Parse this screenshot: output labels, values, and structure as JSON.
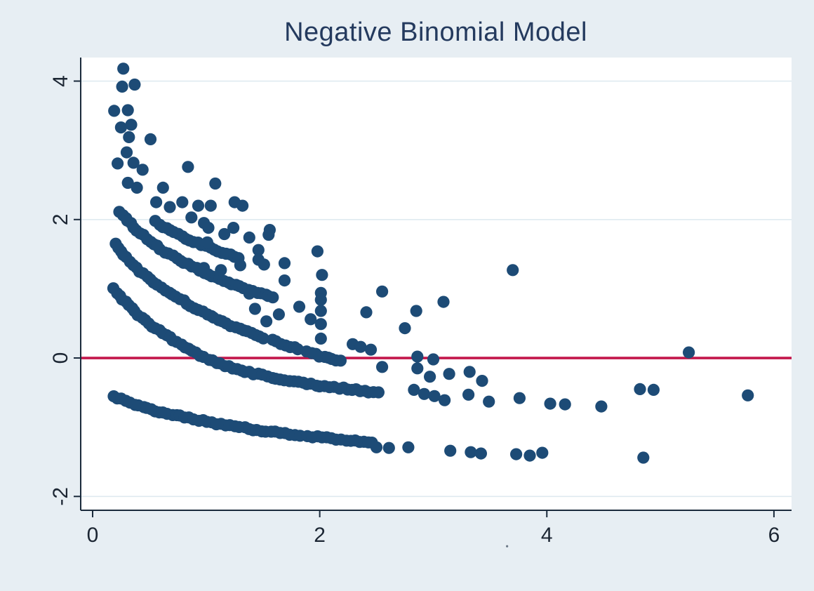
{
  "page": {
    "background": "#e7eef3"
  },
  "chart_data": {
    "type": "scatter",
    "title": "Negative Binomial Model",
    "subtitle": "",
    "xlabel": "",
    "ylabel": "",
    "xlim": [
      -0.105,
      6.155
    ],
    "ylim": [
      -2.2,
      4.34
    ],
    "xticks": [
      0,
      2,
      4,
      6
    ],
    "yticks": [
      -2,
      0,
      2,
      4
    ],
    "grid": "horizontal-only",
    "legend": "none",
    "colors": {
      "title": "#243a5e",
      "marker": "#1d4b76",
      "refline": "#c3174b",
      "axis": "#1b2b3c",
      "tick_label": "#1c2633",
      "gridline": "#dfeaf0",
      "plot_bg": "#ffffff",
      "outer_bg": "#e7eef3"
    },
    "marker": {
      "radius": 8.6
    },
    "refline": {
      "y": 0,
      "width": 3.6
    },
    "bands": [
      {
        "count": 0,
        "gap_after_x": 1.7,
        "anchors": [
          [
            0.19,
            -0.55
          ],
          [
            0.35,
            -0.66
          ],
          [
            0.55,
            -0.76
          ],
          [
            0.8,
            -0.85
          ],
          [
            1.1,
            -0.95
          ],
          [
            1.45,
            -1.04
          ],
          [
            1.8,
            -1.11
          ],
          [
            2.15,
            -1.17
          ],
          [
            2.48,
            -1.22
          ]
        ]
      },
      {
        "count": 1,
        "gap_after_x": 1.7,
        "anchors": [
          [
            0.185,
            1.0
          ],
          [
            0.33,
            0.74
          ],
          [
            0.5,
            0.49
          ],
          [
            0.7,
            0.27
          ],
          [
            0.9,
            0.08
          ],
          [
            1.1,
            -0.07
          ],
          [
            1.35,
            -0.2
          ],
          [
            1.65,
            -0.3
          ],
          [
            1.95,
            -0.385
          ],
          [
            2.25,
            -0.45
          ],
          [
            2.52,
            -0.5
          ]
        ]
      },
      {
        "count": 2,
        "gap_after_x": 1.5,
        "anchors": [
          [
            0.2,
            1.65
          ],
          [
            0.36,
            1.34
          ],
          [
            0.55,
            1.08
          ],
          [
            0.78,
            0.84
          ],
          [
            1.02,
            0.62
          ],
          [
            1.28,
            0.43
          ],
          [
            1.55,
            0.27
          ],
          [
            1.82,
            0.12
          ],
          [
            2.05,
            0.01
          ],
          [
            2.26,
            -0.08
          ]
        ]
      },
      {
        "count": 3,
        "gap_after_x": 99,
        "anchors": [
          [
            0.24,
            2.12
          ],
          [
            0.42,
            1.8
          ],
          [
            0.65,
            1.52
          ],
          [
            0.9,
            1.3
          ],
          [
            1.15,
            1.12
          ],
          [
            1.4,
            0.97
          ],
          [
            1.6,
            0.86
          ]
        ]
      },
      {
        "count": 4,
        "gap_after_x": 99,
        "anchors": [
          [
            0.55,
            1.97
          ],
          [
            0.72,
            1.81
          ],
          [
            0.92,
            1.66
          ],
          [
            1.12,
            1.54
          ],
          [
            1.3,
            1.44
          ]
        ]
      }
    ],
    "points": [
      [
        0.27,
        4.18
      ],
      [
        0.26,
        3.92
      ],
      [
        0.37,
        3.95
      ],
      [
        0.19,
        3.57
      ],
      [
        0.31,
        3.58
      ],
      [
        0.25,
        3.33
      ],
      [
        0.34,
        3.37
      ],
      [
        0.32,
        3.19
      ],
      [
        0.51,
        3.16
      ],
      [
        0.3,
        2.97
      ],
      [
        0.22,
        2.81
      ],
      [
        0.36,
        2.82
      ],
      [
        0.44,
        2.72
      ],
      [
        0.31,
        2.53
      ],
      [
        0.39,
        2.46
      ],
      [
        0.62,
        2.46
      ],
      [
        0.56,
        2.25
      ],
      [
        0.84,
        2.76
      ],
      [
        1.08,
        2.52
      ],
      [
        0.79,
        2.25
      ],
      [
        0.93,
        2.2
      ],
      [
        1.04,
        2.2
      ],
      [
        1.25,
        2.25
      ],
      [
        1.32,
        2.2
      ],
      [
        0.68,
        2.18
      ],
      [
        0.87,
        2.03
      ],
      [
        0.98,
        1.95
      ],
      [
        1.02,
        1.88
      ],
      [
        1.24,
        1.88
      ],
      [
        1.56,
        1.85
      ],
      [
        1.16,
        1.79
      ],
      [
        1.55,
        1.78
      ],
      [
        1.38,
        1.74
      ],
      [
        1.01,
        1.67
      ],
      [
        1.46,
        1.56
      ],
      [
        1.98,
        1.54
      ],
      [
        1.69,
        1.37
      ],
      [
        1.51,
        1.35
      ],
      [
        1.3,
        1.34
      ],
      [
        1.13,
        1.27
      ],
      [
        0.98,
        1.3
      ],
      [
        1.46,
        1.42
      ],
      [
        1.69,
        1.12
      ],
      [
        2.02,
        1.2
      ],
      [
        1.38,
        0.93
      ],
      [
        2.01,
        0.94
      ],
      [
        2.01,
        0.84
      ],
      [
        2.01,
        0.68
      ],
      [
        2.01,
        0.49
      ],
      [
        2.01,
        0.28
      ],
      [
        1.92,
        0.56
      ],
      [
        1.82,
        0.74
      ],
      [
        1.64,
        0.63
      ],
      [
        1.53,
        0.53
      ],
      [
        1.43,
        0.71
      ],
      [
        2.41,
        0.66
      ],
      [
        2.55,
        0.96
      ],
      [
        2.75,
        0.43
      ],
      [
        2.85,
        0.68
      ],
      [
        3.09,
        0.81
      ],
      [
        2.29,
        0.2
      ],
      [
        2.36,
        0.16
      ],
      [
        2.45,
        0.12
      ],
      [
        2.86,
        0.02
      ],
      [
        3.0,
        -0.02
      ],
      [
        2.55,
        -0.13
      ],
      [
        2.86,
        -0.15
      ],
      [
        2.97,
        -0.27
      ],
      [
        3.14,
        -0.23
      ],
      [
        3.32,
        -0.2
      ],
      [
        3.43,
        -0.33
      ],
      [
        3.7,
        1.27
      ],
      [
        2.83,
        -0.46
      ],
      [
        2.92,
        -0.52
      ],
      [
        3.01,
        -0.55
      ],
      [
        3.1,
        -0.61
      ],
      [
        3.31,
        -0.53
      ],
      [
        3.49,
        -0.63
      ],
      [
        3.76,
        -0.58
      ],
      [
        4.03,
        -0.66
      ],
      [
        4.16,
        -0.67
      ],
      [
        4.48,
        -0.7
      ],
      [
        4.82,
        -0.45
      ],
      [
        4.94,
        -0.46
      ],
      [
        5.25,
        0.08
      ],
      [
        5.77,
        -0.54
      ],
      [
        2.5,
        -1.29
      ],
      [
        2.61,
        -1.3
      ],
      [
        2.78,
        -1.29
      ],
      [
        3.15,
        -1.34
      ],
      [
        3.33,
        -1.36
      ],
      [
        3.42,
        -1.38
      ],
      [
        3.73,
        -1.39
      ],
      [
        3.85,
        -1.41
      ],
      [
        3.96,
        -1.37
      ],
      [
        4.85,
        -1.44
      ]
    ],
    "stray_dot": {
      "x": 3.65,
      "y": -2.72
    }
  }
}
